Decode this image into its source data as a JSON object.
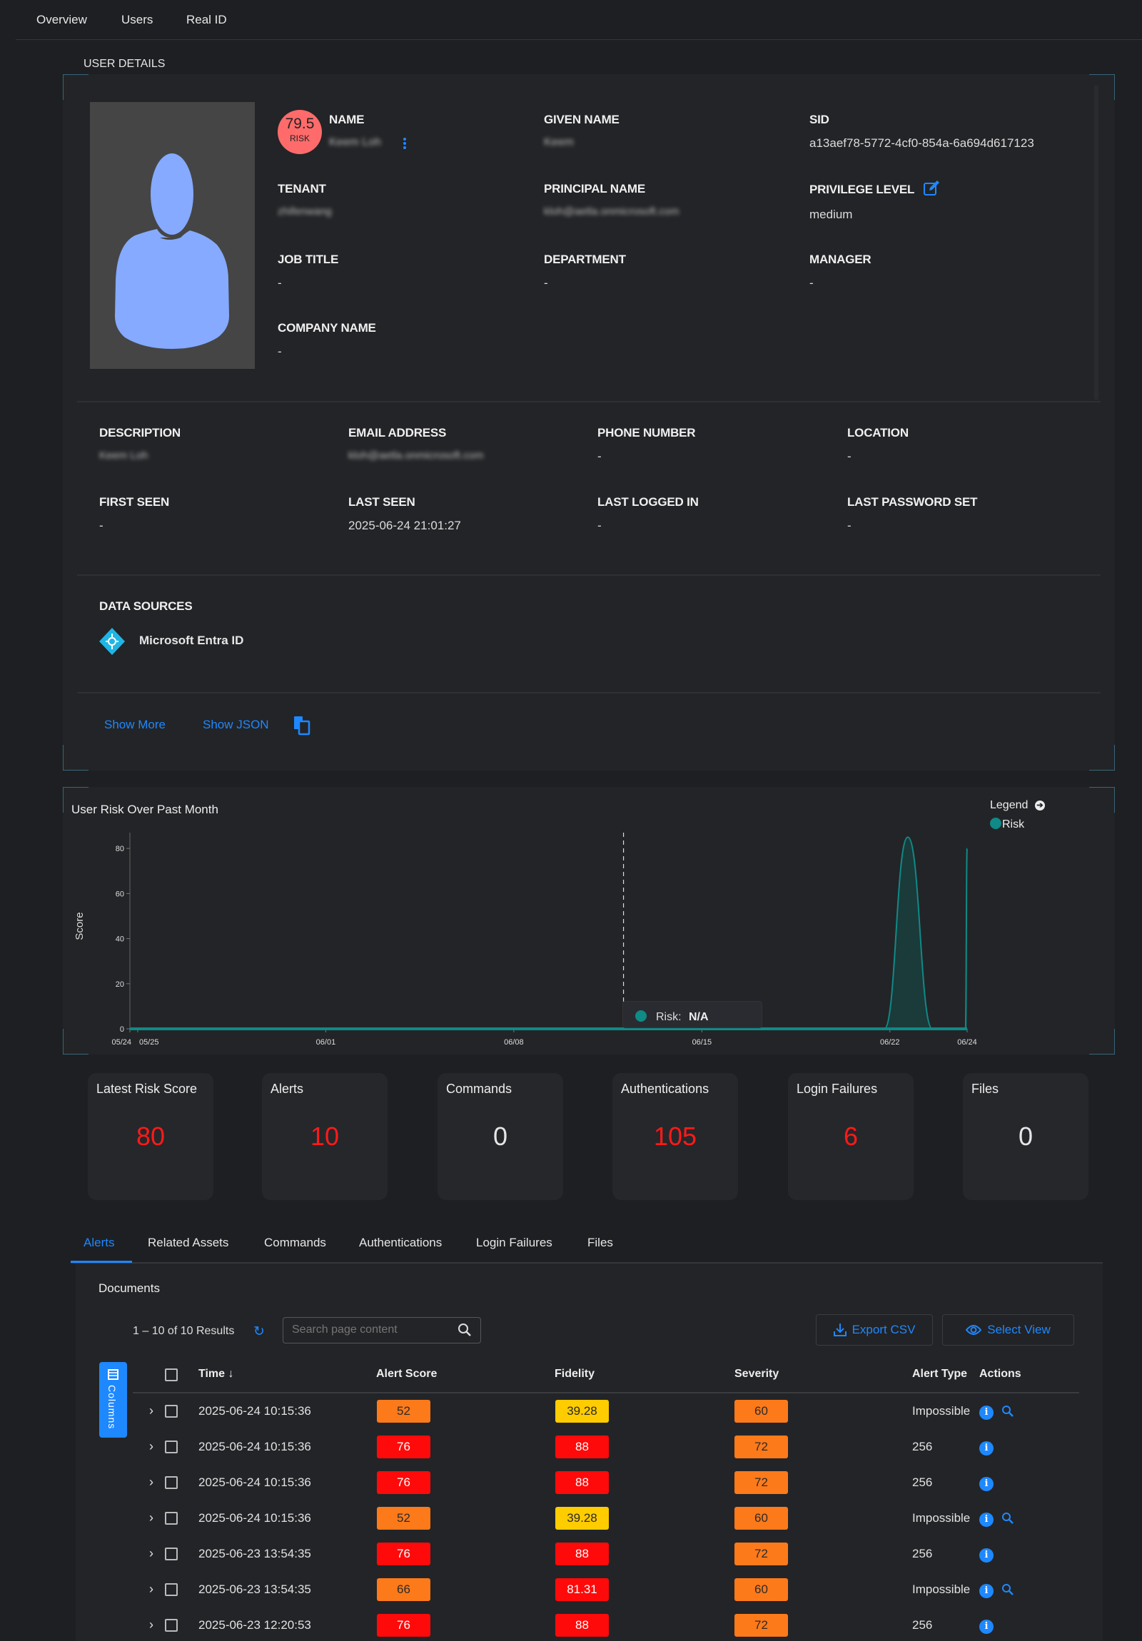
{
  "nav": {
    "items": [
      {
        "label": "Overview"
      },
      {
        "label": "Users"
      },
      {
        "label": "Real ID"
      }
    ]
  },
  "user_details": {
    "section_title": "USER DETAILS",
    "risk": {
      "score": "79.5",
      "label": "RISK",
      "color": "#ff6b6b"
    },
    "fields": {
      "name": {
        "label": "NAME",
        "value": "Keem Loh"
      },
      "given_name": {
        "label": "GIVEN NAME",
        "value": "Keem"
      },
      "sid": {
        "label": "SID",
        "value": "a13aef78-5772-4cf0-854a-6a694d617123"
      },
      "tenant": {
        "label": "TENANT",
        "value": "zhifenwang"
      },
      "principal_name": {
        "label": "PRINCIPAL NAME",
        "value": "kloh@aetla.onmicrosoft.com"
      },
      "privilege_level": {
        "label": "PRIVILEGE LEVEL",
        "value": "medium"
      },
      "job_title": {
        "label": "JOB TITLE",
        "value": "-"
      },
      "department": {
        "label": "DEPARTMENT",
        "value": "-"
      },
      "manager": {
        "label": "MANAGER",
        "value": "-"
      },
      "company_name": {
        "label": "COMPANY NAME",
        "value": "-"
      },
      "description": {
        "label": "DESCRIPTION",
        "value": "Keem Loh"
      },
      "email": {
        "label": "EMAIL ADDRESS",
        "value": "kloh@aetla.onmicrosoft.com"
      },
      "phone": {
        "label": "PHONE NUMBER",
        "value": "-"
      },
      "location": {
        "label": "LOCATION",
        "value": "-"
      },
      "first_seen": {
        "label": "FIRST SEEN",
        "value": "-"
      },
      "last_seen": {
        "label": "LAST SEEN",
        "value": "2025-06-24 21:01:27"
      },
      "last_logged_in": {
        "label": "LAST LOGGED IN",
        "value": "-"
      },
      "last_password_set": {
        "label": "LAST PASSWORD SET",
        "value": "-"
      }
    },
    "data_sources": {
      "label": "DATA SOURCES",
      "items": [
        {
          "name": "Microsoft Entra ID",
          "icon": "entra-id-icon"
        }
      ]
    },
    "show_more": "Show More",
    "show_json": "Show JSON"
  },
  "chart_data": {
    "type": "area",
    "title": "User Risk Over Past Month",
    "ylabel": "Score",
    "xlabel": "",
    "ylim": [
      0,
      87
    ],
    "y_ticks": [
      0,
      20,
      40,
      60,
      80
    ],
    "xlim": [
      "2025-05-24T17:00",
      "2025-06-24T21:00"
    ],
    "x_ticks": [
      {
        "label": "05/24",
        "date": "2025-05-24T17:00"
      },
      {
        "label": "05/25",
        "date": "2025-05-25T00:00"
      },
      {
        "label": "06/01",
        "date": "2025-06-01T00:00"
      },
      {
        "label": "06/08",
        "date": "2025-06-08T00:00"
      },
      {
        "label": "06/15",
        "date": "2025-06-15T00:00"
      },
      {
        "label": "06/22",
        "date": "2025-06-22T00:00"
      },
      {
        "label": "06/24",
        "date": "2025-06-24T21:00"
      }
    ],
    "legend": {
      "title": "Legend",
      "position": "top-right"
    },
    "series": [
      {
        "name": "Risk",
        "color": "#0f8a86",
        "points": [
          {
            "x": "2025-05-24T17:00",
            "y": 0
          },
          {
            "x": "2025-06-21T19:00",
            "y": 0
          },
          {
            "x": "2025-06-22T16:00",
            "y": 85
          },
          {
            "x": "2025-06-23T14:00",
            "y": 0
          },
          {
            "x": "2025-06-24T19:30",
            "y": 0
          },
          {
            "x": "2025-06-24T21:00",
            "y": 80
          }
        ]
      }
    ],
    "hover_date": "2025-06-12T02:00",
    "tooltip": {
      "label": "Risk:",
      "value": "N/A"
    }
  },
  "stats": [
    {
      "title": "Latest Risk Score",
      "value": "80",
      "color": "#ff1a1a"
    },
    {
      "title": "Alerts",
      "value": "10",
      "color": "#ff1a1a"
    },
    {
      "title": "Commands",
      "value": "0",
      "color": "#e6e6e6"
    },
    {
      "title": "Authentications",
      "value": "105",
      "color": "#ff1a1a"
    },
    {
      "title": "Login Failures",
      "value": "6",
      "color": "#ff1a1a"
    },
    {
      "title": "Files",
      "value": "0",
      "color": "#e6e6e6"
    }
  ],
  "tabs": [
    {
      "label": "Alerts",
      "active": true
    },
    {
      "label": "Related Assets"
    },
    {
      "label": "Commands"
    },
    {
      "label": "Authentications"
    },
    {
      "label": "Login Failures"
    },
    {
      "label": "Files"
    }
  ],
  "documents": {
    "title": "Documents",
    "results": "1 – 10 of 10 Results",
    "search_placeholder": "Search page content",
    "export_csv": "Export CSV",
    "select_view": "Select View",
    "columns_button": "Columns",
    "headers": {
      "time": "Time",
      "alert_score": "Alert Score",
      "fidelity": "Fidelity",
      "severity": "Severity",
      "alert_type": "Alert Type",
      "actions": "Actions"
    },
    "badge_colors": {
      "orange": "#fd7a1a",
      "red": "#ff0a0a",
      "yellow": "#ffcc00"
    },
    "rows": [
      {
        "time": "2025-06-24 10:15:36",
        "alert_score": "52",
        "score_level": "orange",
        "fidelity": "39.28",
        "fidelity_level": "yellow",
        "severity": "60",
        "severity_level": "orange",
        "alert_type": "Impossible",
        "search_action": true
      },
      {
        "time": "2025-06-24 10:15:36",
        "alert_score": "76",
        "score_level": "red",
        "fidelity": "88",
        "fidelity_level": "red",
        "severity": "72",
        "severity_level": "orange",
        "alert_type": "256",
        "search_action": false
      },
      {
        "time": "2025-06-24 10:15:36",
        "alert_score": "76",
        "score_level": "red",
        "fidelity": "88",
        "fidelity_level": "red",
        "severity": "72",
        "severity_level": "orange",
        "alert_type": "256",
        "search_action": false
      },
      {
        "time": "2025-06-24 10:15:36",
        "alert_score": "52",
        "score_level": "orange",
        "fidelity": "39.28",
        "fidelity_level": "yellow",
        "severity": "60",
        "severity_level": "orange",
        "alert_type": "Impossible",
        "search_action": true
      },
      {
        "time": "2025-06-23 13:54:35",
        "alert_score": "76",
        "score_level": "red",
        "fidelity": "88",
        "fidelity_level": "red",
        "severity": "72",
        "severity_level": "orange",
        "alert_type": "256",
        "search_action": false
      },
      {
        "time": "2025-06-23 13:54:35",
        "alert_score": "66",
        "score_level": "orange",
        "fidelity": "81.31",
        "fidelity_level": "red",
        "severity": "60",
        "severity_level": "orange",
        "alert_type": "Impossible",
        "search_action": true
      },
      {
        "time": "2025-06-23 12:20:53",
        "alert_score": "76",
        "score_level": "red",
        "fidelity": "88",
        "fidelity_level": "red",
        "severity": "72",
        "severity_level": "orange",
        "alert_type": "256",
        "search_action": false
      }
    ]
  }
}
